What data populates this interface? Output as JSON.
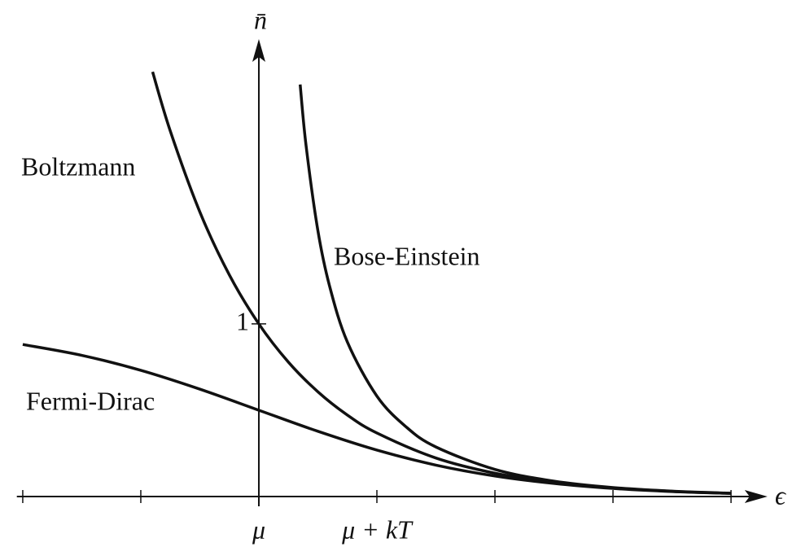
{
  "chart_data": {
    "type": "line",
    "xlabel": "ϵ",
    "ylabel": "n̄",
    "xlim": [
      -2.05,
      4.35
    ],
    "ylim": [
      0,
      2.65
    ],
    "xticks": [
      {
        "value": -2,
        "label": null
      },
      {
        "value": -1,
        "label": null
      },
      {
        "value": 0,
        "label": "μ"
      },
      {
        "value": 1,
        "label": "μ + kT"
      },
      {
        "value": 2,
        "label": null
      },
      {
        "value": 3,
        "label": null
      },
      {
        "value": 4,
        "label": null
      }
    ],
    "yticks": [
      1
    ],
    "series": [
      {
        "name": "Boltzmann",
        "color": "#111111",
        "x": [
          -0.9,
          -0.75,
          -0.5,
          -0.25,
          0,
          0.25,
          0.5,
          0.75,
          1,
          1.5,
          2,
          2.5,
          3,
          3.5,
          4
        ],
        "values": [
          2.46,
          2.117,
          1.649,
          1.284,
          1,
          0.779,
          0.607,
          0.472,
          0.368,
          0.223,
          0.135,
          0.082,
          0.05,
          0.03,
          0.018
        ]
      },
      {
        "name": "Bose-Einstein",
        "color": "#111111",
        "x": [
          0.35,
          0.4,
          0.5,
          0.6,
          0.75,
          1,
          1.25,
          1.5,
          2,
          2.5,
          3,
          3.5,
          4
        ],
        "values": [
          2.387,
          2.033,
          1.541,
          1.217,
          0.895,
          0.582,
          0.402,
          0.287,
          0.157,
          0.089,
          0.052,
          0.031,
          0.019
        ]
      },
      {
        "name": "Fermi-Dirac",
        "color": "#111111",
        "x": [
          -2,
          -1.5,
          -1,
          -0.5,
          0,
          0.5,
          1,
          1.5,
          2,
          2.5,
          3,
          3.5,
          4
        ],
        "values": [
          0.881,
          0.818,
          0.731,
          0.622,
          0.5,
          0.378,
          0.269,
          0.182,
          0.119,
          0.076,
          0.047,
          0.029,
          0.018
        ]
      }
    ]
  }
}
